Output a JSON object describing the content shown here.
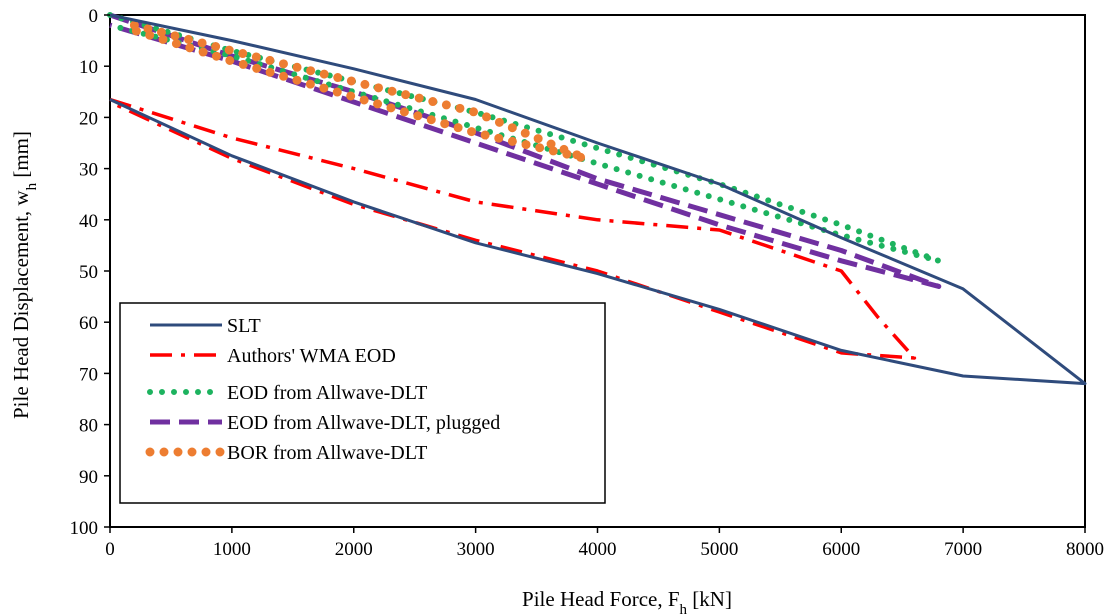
{
  "chart_data": {
    "type": "line",
    "xlabel": "Pile Head Force, F",
    "xlabel_sub": "h",
    "xlabel_unit": " [kN]",
    "ylabel": "Pile Head Displacement, w",
    "ylabel_sub": "h",
    "ylabel_unit": " [mm]",
    "xlim": [
      0,
      8000
    ],
    "ylim": [
      0,
      100
    ],
    "y_inverted": true,
    "x_ticks": [
      0,
      1000,
      2000,
      3000,
      4000,
      5000,
      6000,
      7000,
      8000
    ],
    "y_ticks": [
      0,
      10,
      20,
      30,
      40,
      50,
      60,
      70,
      80,
      90,
      100
    ],
    "grid": false,
    "legend_position": "bottom-left",
    "series": [
      {
        "name": "SLT",
        "color": "#2f4b7c",
        "style": "solid",
        "points": [
          [
            0,
            0
          ],
          [
            1000,
            5
          ],
          [
            2000,
            10.5
          ],
          [
            3000,
            16.5
          ],
          [
            4000,
            25
          ],
          [
            5000,
            33
          ],
          [
            6000,
            43.5
          ],
          [
            7000,
            53.5
          ],
          [
            8000,
            72
          ],
          [
            7000,
            70.5
          ],
          [
            6000,
            65.5
          ],
          [
            5000,
            57.5
          ],
          [
            4000,
            50.5
          ],
          [
            3000,
            44.5
          ],
          [
            2000,
            36.5
          ],
          [
            1000,
            27.5
          ],
          [
            0,
            16.5
          ]
        ]
      },
      {
        "name": "Authors' WMA EOD",
        "color": "#ff0000",
        "style": "dashdot",
        "points": [
          [
            0,
            16.5
          ],
          [
            1000,
            24
          ],
          [
            2000,
            30
          ],
          [
            3000,
            36.5
          ],
          [
            4000,
            40
          ],
          [
            5000,
            42
          ],
          [
            6000,
            50
          ],
          [
            6300,
            59
          ],
          [
            6600,
            67
          ],
          [
            6000,
            66
          ],
          [
            5000,
            58
          ],
          [
            4000,
            50
          ],
          [
            3000,
            44
          ],
          [
            2000,
            37
          ],
          [
            1000,
            28
          ],
          [
            0,
            17
          ]
        ]
      },
      {
        "name": "EOD from Allwave-DLT",
        "color": "#1db35f",
        "style": "dotted",
        "points": [
          [
            0,
            0
          ],
          [
            1000,
            7
          ],
          [
            2000,
            13
          ],
          [
            3000,
            19
          ],
          [
            4000,
            26
          ],
          [
            5000,
            33
          ],
          [
            6000,
            41
          ],
          [
            6800,
            48
          ],
          [
            6000,
            43
          ],
          [
            5000,
            36
          ],
          [
            4000,
            29
          ],
          [
            3000,
            22
          ],
          [
            2000,
            15
          ],
          [
            1000,
            8
          ],
          [
            0,
            2
          ]
        ]
      },
      {
        "name": "EOD from Allwave-DLT, plugged",
        "color": "#7030a0",
        "style": "dashed",
        "points": [
          [
            0,
            0
          ],
          [
            1000,
            8
          ],
          [
            2000,
            15
          ],
          [
            3000,
            23
          ],
          [
            4000,
            32
          ],
          [
            5000,
            39
          ],
          [
            6000,
            46
          ],
          [
            6800,
            53
          ],
          [
            6000,
            48
          ],
          [
            5000,
            41
          ],
          [
            4000,
            33
          ],
          [
            3000,
            25
          ],
          [
            2000,
            17
          ],
          [
            1000,
            9
          ],
          [
            0,
            2
          ]
        ]
      },
      {
        "name": "BOR from Allwave-DLT",
        "color": "#ed7d31",
        "style": "dotted-large",
        "points": [
          [
            200,
            2
          ],
          [
            1000,
            7
          ],
          [
            2000,
            13
          ],
          [
            3000,
            19
          ],
          [
            3900,
            28
          ],
          [
            3000,
            23
          ],
          [
            2000,
            16
          ],
          [
            1000,
            9
          ],
          [
            200,
            3
          ]
        ]
      }
    ]
  }
}
